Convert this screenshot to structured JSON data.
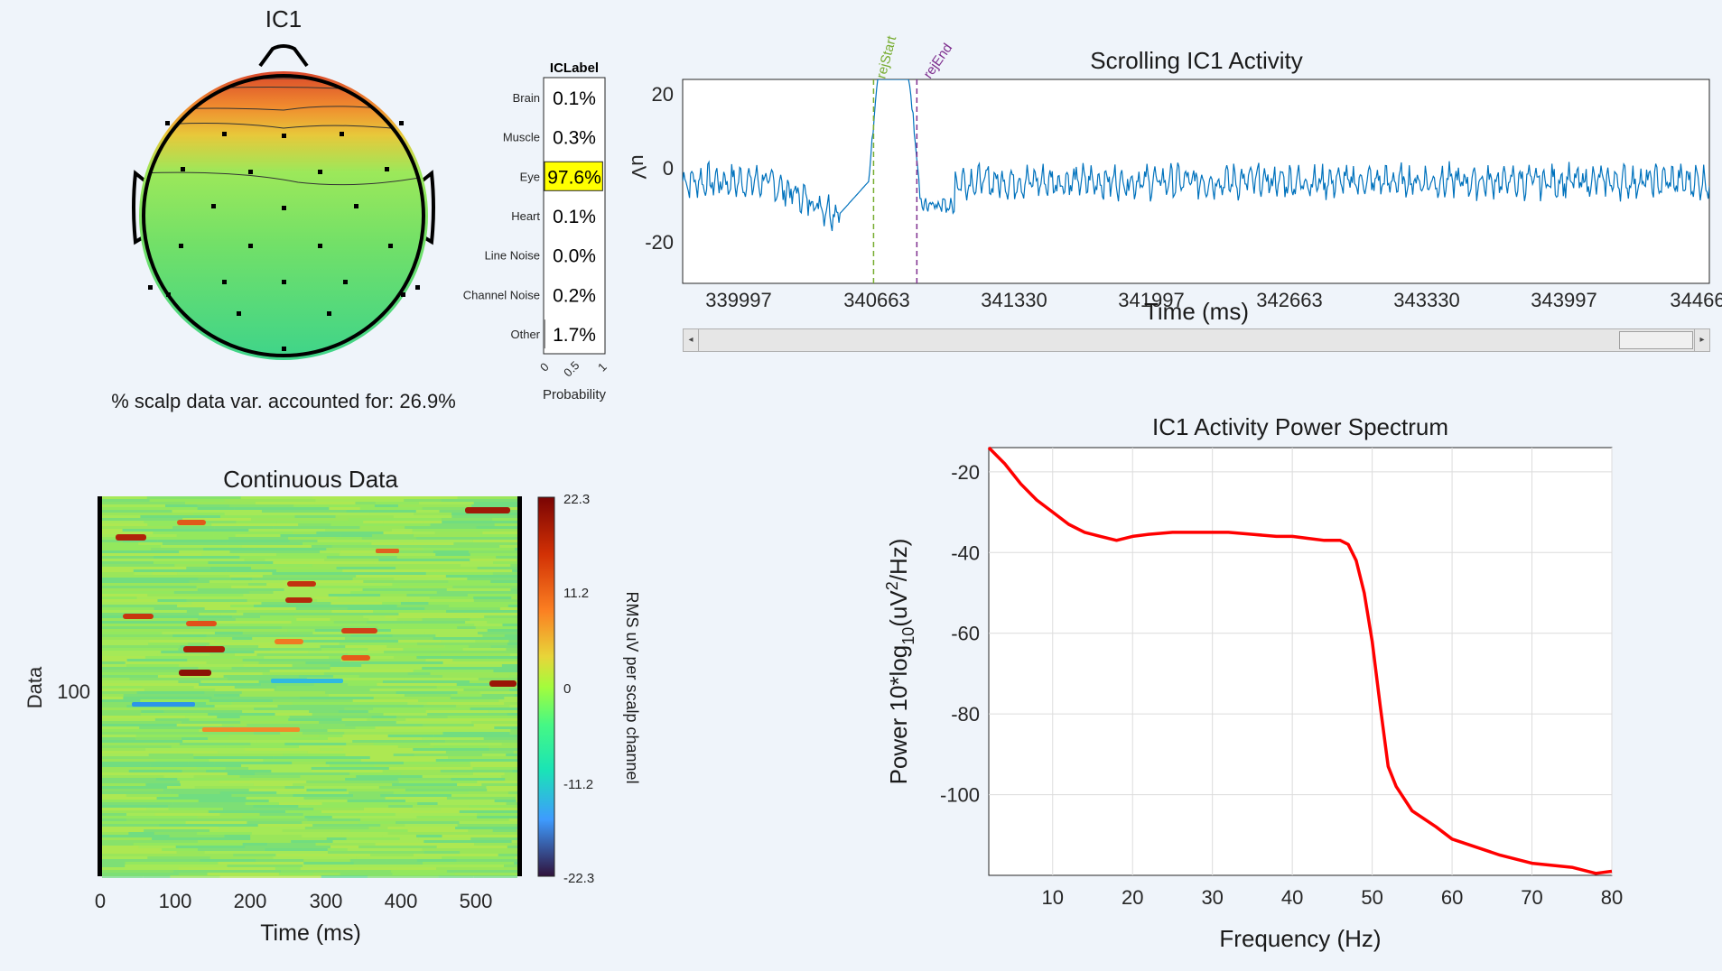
{
  "scalp": {
    "title": "IC1",
    "variance_text": "% scalp data var. accounted for: 26.9%"
  },
  "iclabel": {
    "title": "ICLabel",
    "xlabel": "Probability",
    "xticks": [
      "0",
      "0.5",
      "1"
    ],
    "rows": [
      {
        "label": "Brain",
        "value": "0.1%",
        "prob": 0.001
      },
      {
        "label": "Muscle",
        "value": "0.3%",
        "prob": 0.003
      },
      {
        "label": "Eye",
        "value": "97.6%",
        "prob": 0.976,
        "highlight": true
      },
      {
        "label": "Heart",
        "value": "0.1%",
        "prob": 0.001
      },
      {
        "label": "Line Noise",
        "value": "0.0%",
        "prob": 0.0
      },
      {
        "label": "Channel Noise",
        "value": "0.2%",
        "prob": 0.002
      },
      {
        "label": "Other",
        "value": "1.7%",
        "prob": 0.017
      }
    ],
    "highlight_color": "#ffff00"
  },
  "activity": {
    "title": "Scrolling IC1 Activity",
    "xlabel": "Time (ms)",
    "ylabel": "uV",
    "yticks": [
      "20",
      "0",
      "-20"
    ],
    "xticks": [
      "339997",
      "340663",
      "341330",
      "341997",
      "342663",
      "343330",
      "343997",
      "34466"
    ],
    "markers": [
      {
        "label": "rejStart",
        "color": "#77ac30"
      },
      {
        "label": "rejEnd",
        "color": "#7e2f8e"
      }
    ],
    "line_color": "#0072bd"
  },
  "continuous": {
    "title": "Continuous Data",
    "xlabel": "Time (ms)",
    "ylabel": "Data",
    "yticks": [
      "100"
    ],
    "xticks": [
      "0",
      "100",
      "200",
      "300",
      "400",
      "500"
    ],
    "colorbar_ticks": [
      "22.3",
      "11.2",
      "0",
      "-11.2",
      "-22.3"
    ],
    "colorbar_label": "RMS uV per scalp channel"
  },
  "spectrum": {
    "title": "IC1 Activity Power Spectrum",
    "xlabel": "Frequency (Hz)",
    "ylabel_main": "Power 10*log",
    "ylabel_sub": "10",
    "ylabel_rest": "(uV",
    "ylabel_sup": "2",
    "ylabel_end": "/Hz)",
    "line_color": "#ff0000"
  },
  "chart_data": [
    {
      "type": "bar",
      "title": "ICLabel",
      "categories": [
        "Brain",
        "Muscle",
        "Eye",
        "Heart",
        "Line Noise",
        "Channel Noise",
        "Other"
      ],
      "values": [
        0.001,
        0.003,
        0.976,
        0.001,
        0.0,
        0.002,
        0.017
      ],
      "xlabel": "Probability",
      "xlim": [
        0,
        1
      ]
    },
    {
      "type": "line",
      "title": "Scrolling IC1 Activity",
      "xlabel": "Time (ms)",
      "ylabel": "uV",
      "xlim": [
        339750,
        344660
      ],
      "ylim": [
        -25,
        25
      ],
      "annotations": [
        {
          "label": "rejStart",
          "x": 340663
        },
        {
          "label": "rejEnd",
          "x": 340870
        }
      ]
    },
    {
      "type": "heatmap",
      "title": "Continuous Data",
      "xlabel": "Time (ms)",
      "ylabel": "Data",
      "xlim": [
        0,
        560
      ],
      "colorbar": {
        "label": "RMS uV per scalp channel",
        "range": [
          -22.3,
          22.3
        ]
      }
    },
    {
      "type": "line",
      "title": "IC1 Activity Power Spectrum",
      "xlabel": "Frequency (Hz)",
      "ylabel": "Power 10*log10(uV2/Hz)",
      "xlim": [
        2,
        80
      ],
      "ylim": [
        -120,
        -14
      ],
      "xticks": [
        10,
        20,
        30,
        40,
        50,
        60,
        70,
        80
      ],
      "yticks": [
        -20,
        -40,
        -60,
        -80,
        -100
      ],
      "grid": true,
      "x": [
        2,
        4,
        6,
        8,
        10,
        12,
        14,
        16,
        18,
        20,
        22,
        25,
        28,
        30,
        32,
        35,
        38,
        40,
        42,
        44,
        46,
        47,
        48,
        49,
        50,
        51,
        52,
        53,
        55,
        58,
        60,
        63,
        66,
        70,
        75,
        78,
        80
      ],
      "y": [
        -14,
        -18,
        -23,
        -27,
        -30,
        -33,
        -35,
        -36,
        -37,
        -36,
        -35.5,
        -35,
        -35,
        -35,
        -35,
        -35.5,
        -36,
        -36,
        -36.5,
        -37,
        -37,
        -38,
        -42,
        -50,
        -62,
        -78,
        -93,
        -98,
        -104,
        -108,
        -111,
        -113,
        -115,
        -117,
        -118,
        -119.5,
        -119
      ]
    }
  ]
}
